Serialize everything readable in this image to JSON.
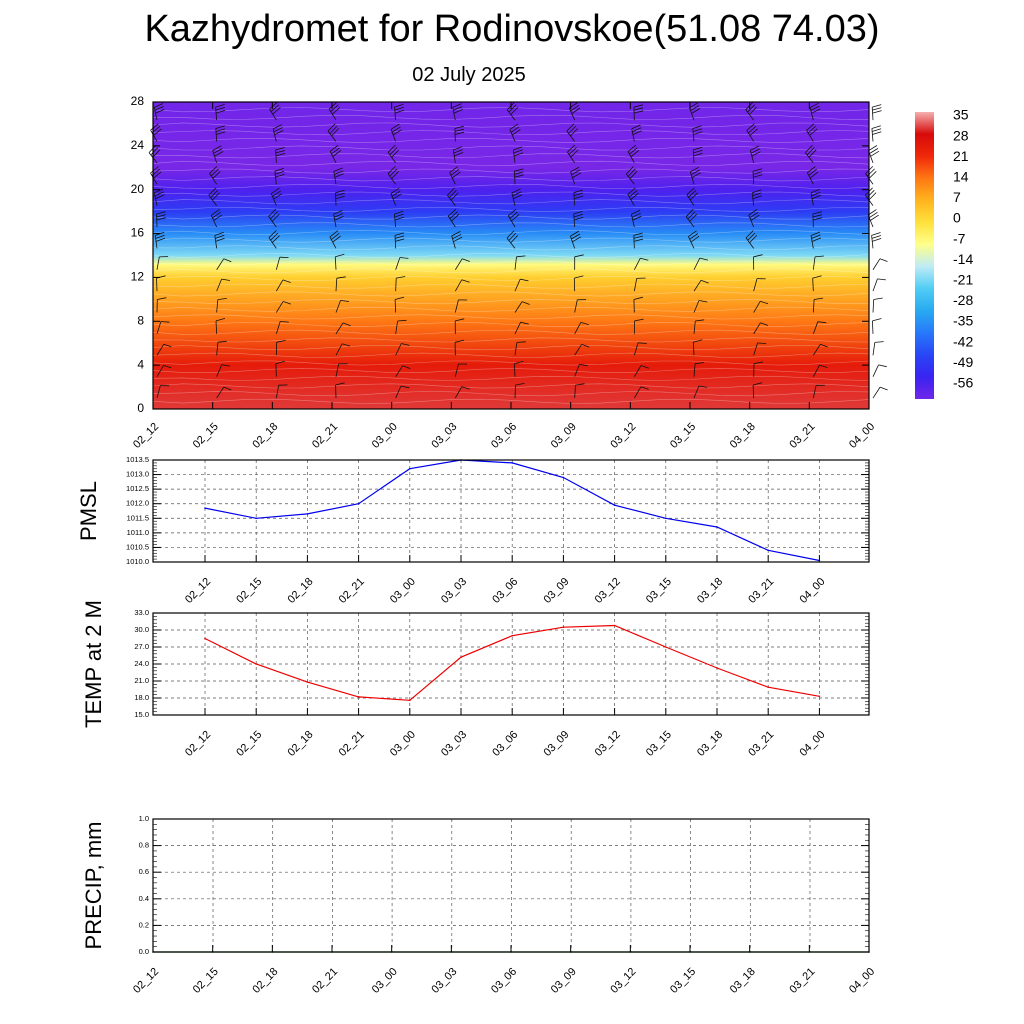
{
  "title": "Kazhydromet for Rodinovskoe(51.08 74.03)",
  "subtitle": "02 July 2025",
  "colors": {
    "pmsl_line": "#0000ee",
    "temp_line": "#ee0000",
    "precip_line": "#006400",
    "grid": "#555555",
    "frame": "#000000"
  },
  "chart_data": [
    {
      "type": "heatmap",
      "name": "cross-section",
      "x": [
        "02_12",
        "02_15",
        "02_18",
        "02_21",
        "03_00",
        "03_03",
        "03_06",
        "03_09",
        "03_12",
        "03_15",
        "03_18",
        "03_21",
        "04_00"
      ],
      "ylim": [
        0,
        28
      ],
      "yticks": [
        0,
        4,
        8,
        12,
        16,
        20,
        24,
        28
      ],
      "colorbar_labels": [
        "35",
        "28",
        "21",
        "14",
        "7",
        "0",
        "-7",
        "-14",
        "-21",
        "-28",
        "-35",
        "-42",
        "-49",
        "-56"
      ],
      "colorbar_values": [
        35,
        28,
        21,
        14,
        7,
        0,
        -7,
        -14,
        -21,
        -28,
        -35,
        -42,
        -49,
        -56
      ],
      "temperature_profile": [
        {
          "level": 0,
          "value": 30
        },
        {
          "level": 4,
          "value": 24
        },
        {
          "level": 8,
          "value": 14
        },
        {
          "level": 12,
          "value": 3
        },
        {
          "level": 13.2,
          "value": -6
        },
        {
          "level": 14,
          "value": -18
        },
        {
          "level": 16,
          "value": -32
        },
        {
          "level": 18,
          "value": -44
        },
        {
          "level": 20,
          "value": -52
        },
        {
          "level": 22,
          "value": -57
        },
        {
          "level": 28,
          "value": -56
        }
      ],
      "grid": false
    },
    {
      "type": "line",
      "name": "pmsl",
      "ylabel": "PMSL",
      "categories": [
        "02_12",
        "02_15",
        "02_18",
        "02_21",
        "03_00",
        "03_03",
        "03_06",
        "03_09",
        "03_12",
        "03_15",
        "03_18",
        "03_21",
        "04_00"
      ],
      "values": [
        1011.85,
        1011.5,
        1011.65,
        1012.0,
        1013.2,
        1013.5,
        1013.4,
        1012.9,
        1011.95,
        1011.5,
        1011.2,
        1010.4,
        1010.05
      ],
      "ylim": [
        1010.0,
        1013.5
      ],
      "yticks": [
        "1010.0",
        "1010.5",
        "1011.0",
        "1011.5",
        "1012.0",
        "1012.5",
        "1013.0",
        "1013.5"
      ],
      "grid": true
    },
    {
      "type": "line",
      "name": "temp",
      "ylabel": "TEMP at 2 M",
      "categories": [
        "02_12",
        "02_15",
        "02_18",
        "02_21",
        "03_00",
        "03_03",
        "03_06",
        "03_09",
        "03_12",
        "03_15",
        "03_18",
        "03_21",
        "04_00"
      ],
      "values": [
        28.5,
        24.0,
        20.8,
        18.2,
        17.6,
        25.2,
        29.0,
        30.5,
        30.8,
        27.0,
        23.3,
        19.9,
        18.3
      ],
      "ylim": [
        15.0,
        33.0
      ],
      "yticks": [
        "15.0",
        "18.0",
        "21.0",
        "24.0",
        "27.0",
        "30.0",
        "33.0"
      ],
      "grid": true
    },
    {
      "type": "line",
      "name": "precip",
      "ylabel": "PRECIP, mm",
      "categories": [
        "02_12",
        "02_15",
        "02_18",
        "02_21",
        "03_00",
        "03_03",
        "03_06",
        "03_09",
        "03_12",
        "03_15",
        "03_18",
        "03_21",
        "04_00"
      ],
      "values": [
        0,
        0,
        0,
        0,
        0,
        0,
        0,
        0,
        0,
        0,
        0,
        0,
        0
      ],
      "ylim": [
        0.0,
        1.0
      ],
      "yticks": [
        "0.0",
        "0.2",
        "0.4",
        "0.6",
        "0.8",
        "1.0"
      ],
      "grid": true
    }
  ]
}
